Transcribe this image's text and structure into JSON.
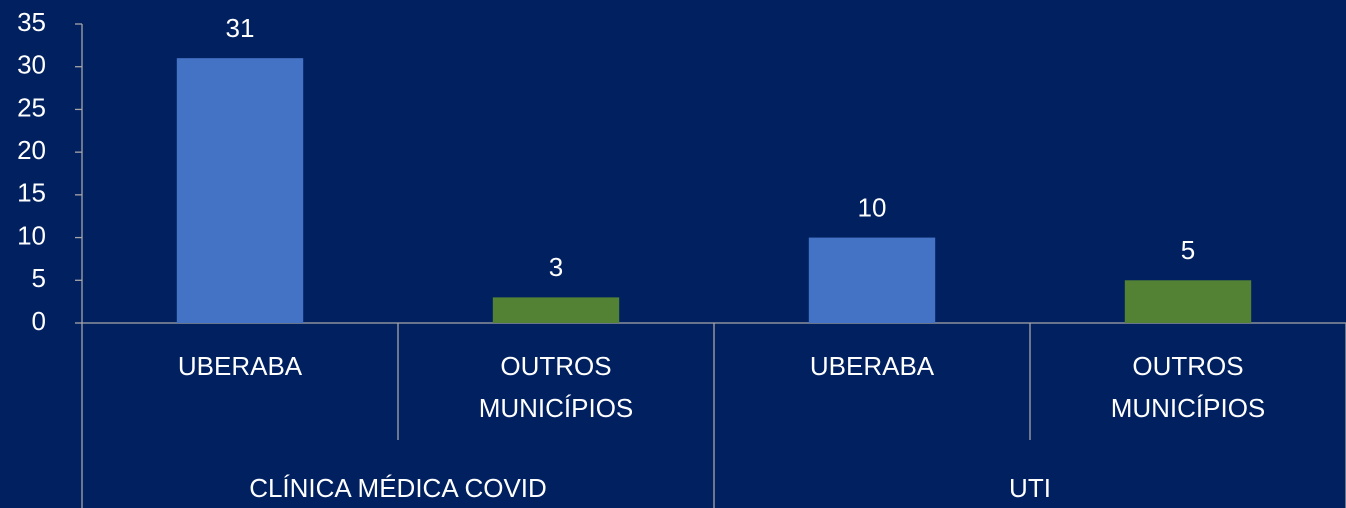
{
  "chart_data": {
    "type": "bar",
    "groups": [
      {
        "name": "CLÍNICA MÉDICA COVID",
        "categories": [
          "UBERABA",
          "OUTROS MUNICÍPIOS"
        ],
        "values": [
          31,
          3
        ]
      },
      {
        "name": "UTI",
        "categories": [
          "UBERABA",
          "OUTROS MUNICÍPIOS"
        ],
        "values": [
          10,
          5
        ]
      }
    ],
    "colors": [
      "#4472c4",
      "#548235"
    ],
    "ylim": [
      0,
      35
    ],
    "yticks": [
      0,
      5,
      10,
      15,
      20,
      25,
      30,
      35
    ]
  }
}
